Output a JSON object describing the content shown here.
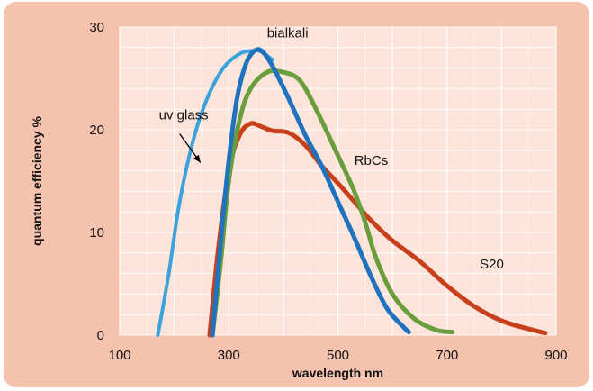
{
  "chart_data": {
    "type": "line",
    "title": "",
    "xlabel": "wavelength   nm",
    "ylabel": "quantum efficiency    %",
    "xlim": [
      100,
      900
    ],
    "ylim": [
      0,
      30
    ],
    "x_ticks": [
      100,
      300,
      500,
      700,
      900
    ],
    "y_ticks": [
      0,
      10,
      20,
      30
    ],
    "grid": true,
    "series": [
      {
        "name": "uv glass",
        "color": "#3aa3dc",
        "points": [
          [
            170,
            0
          ],
          [
            190,
            6
          ],
          [
            210,
            13
          ],
          [
            235,
            19
          ],
          [
            260,
            23
          ],
          [
            290,
            26
          ],
          [
            320,
            27.4
          ],
          [
            345,
            27.7
          ],
          [
            360,
            27.6
          ],
          [
            380,
            26.8
          ]
        ]
      },
      {
        "name": "S20",
        "color": "#c8401b",
        "points": [
          [
            265,
            0
          ],
          [
            280,
            8
          ],
          [
            300,
            16
          ],
          [
            320,
            19.5
          ],
          [
            340,
            20.6
          ],
          [
            360,
            20.3
          ],
          [
            380,
            19.9
          ],
          [
            410,
            19.7
          ],
          [
            440,
            18.5
          ],
          [
            470,
            16.5
          ],
          [
            500,
            14.8
          ],
          [
            530,
            13
          ],
          [
            560,
            11.2
          ],
          [
            600,
            9.2
          ],
          [
            650,
            7.2
          ],
          [
            700,
            4.8
          ],
          [
            750,
            2.8
          ],
          [
            800,
            1.4
          ],
          [
            850,
            0.6
          ],
          [
            880,
            0.2
          ]
        ]
      },
      {
        "name": "RbCs",
        "color": "#6a9e3c",
        "points": [
          [
            270,
            0
          ],
          [
            285,
            7
          ],
          [
            300,
            15
          ],
          [
            320,
            21
          ],
          [
            340,
            24
          ],
          [
            370,
            25.6
          ],
          [
            400,
            25.6
          ],
          [
            430,
            24.8
          ],
          [
            460,
            22
          ],
          [
            500,
            17.5
          ],
          [
            530,
            14
          ],
          [
            550,
            11
          ],
          [
            570,
            7.5
          ],
          [
            600,
            4
          ],
          [
            640,
            1.6
          ],
          [
            680,
            0.5
          ],
          [
            710,
            0.3
          ]
        ]
      },
      {
        "name": "bialkali",
        "color": "#1f72bd",
        "points": [
          [
            270,
            0
          ],
          [
            285,
            9
          ],
          [
            300,
            17
          ],
          [
            315,
            23
          ],
          [
            330,
            26.2
          ],
          [
            345,
            27.6
          ],
          [
            360,
            27.7
          ],
          [
            380,
            26.2
          ],
          [
            410,
            23
          ],
          [
            440,
            19.5
          ],
          [
            470,
            16.5
          ],
          [
            500,
            13
          ],
          [
            530,
            9.5
          ],
          [
            560,
            5.8
          ],
          [
            590,
            2.6
          ],
          [
            620,
            0.8
          ],
          [
            630,
            0.3
          ]
        ]
      }
    ],
    "annotations": [
      {
        "text": "bialkali",
        "series": "bialkali"
      },
      {
        "text": "RbCs",
        "series": "RbCs"
      },
      {
        "text": "S20",
        "series": "S20"
      },
      {
        "text": "uv glass",
        "series": "uv glass"
      }
    ]
  }
}
